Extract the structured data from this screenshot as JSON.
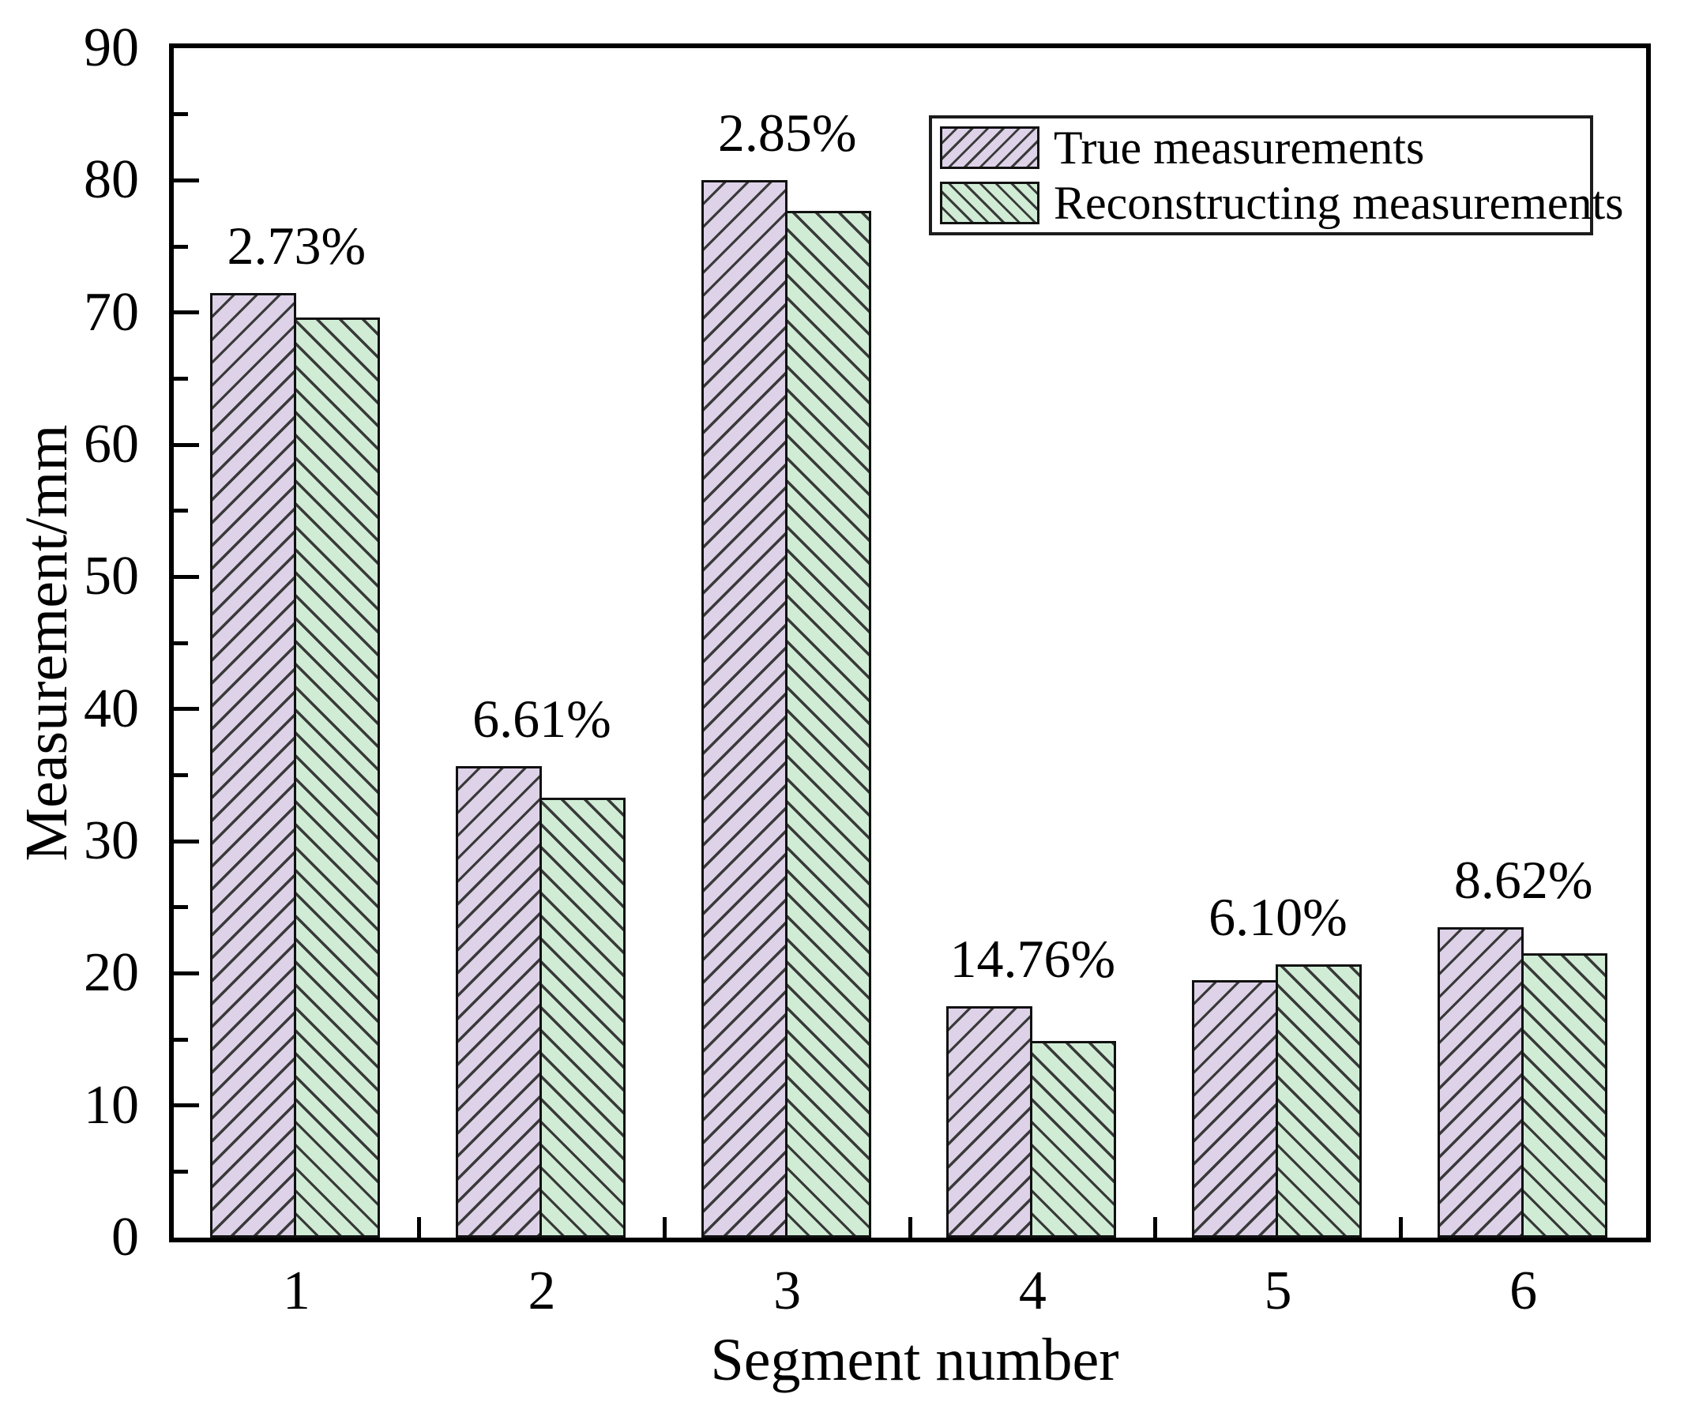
{
  "figure": {
    "background": "#ffffff",
    "frame_color": "#000000"
  },
  "colors": {
    "hatch_line": "#3a3a3a",
    "bar_border": "#111111",
    "true_fill": "#ddd2e8",
    "recon_fill": "#d0ecd5"
  },
  "axes": {
    "y": {
      "label": "Measurement/mm",
      "min": 0,
      "max": 90,
      "major_step": 10,
      "minor_step": 5,
      "tick_labels": [
        "0",
        "10",
        "20",
        "30",
        "40",
        "50",
        "60",
        "70",
        "80",
        "90"
      ]
    },
    "x": {
      "label": "Segment number",
      "tick_labels": [
        "1",
        "2",
        "3",
        "4",
        "5",
        "6"
      ]
    }
  },
  "legend": {
    "position": "upper right",
    "items": [
      {
        "label": "True measurements",
        "swatch": "purple-forward-hatch-swatch"
      },
      {
        "label": "Reconstructing measurements",
        "swatch": "green-backward-hatch-swatch"
      }
    ]
  },
  "chart_data": {
    "type": "bar",
    "title": "",
    "xlabel": "Segment number",
    "ylabel": "Measurement/mm",
    "ylim": [
      0,
      90
    ],
    "grid": false,
    "legend_position": "upper right",
    "categories": [
      "1",
      "2",
      "3",
      "4",
      "5",
      "6"
    ],
    "series": [
      {
        "name": "True measurements",
        "color": "#ddd2e8",
        "hatch": "/",
        "values": [
          71.5,
          35.7,
          80.0,
          17.5,
          19.5,
          23.5
        ]
      },
      {
        "name": "Reconstructing measurements",
        "color": "#d0ecd5",
        "hatch": "\\",
        "values": [
          69.6,
          33.3,
          77.7,
          14.9,
          20.7,
          21.5
        ]
      }
    ],
    "annotations": [
      {
        "text": "2.73%",
        "segment": "1"
      },
      {
        "text": "6.61%",
        "segment": "2"
      },
      {
        "text": "2.85%",
        "segment": "3"
      },
      {
        "text": "14.76%",
        "segment": "4"
      },
      {
        "text": "6.10%",
        "segment": "5"
      },
      {
        "text": "8.62%",
        "segment": "6"
      }
    ]
  }
}
